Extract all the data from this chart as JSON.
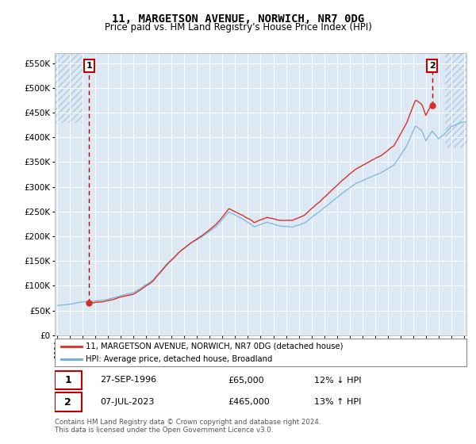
{
  "title": "11, MARGETSON AVENUE, NORWICH, NR7 0DG",
  "subtitle": "Price paid vs. HM Land Registry's House Price Index (HPI)",
  "legend_line1": "11, MARGETSON AVENUE, NORWICH, NR7 0DG (detached house)",
  "legend_line2": "HPI: Average price, detached house, Broadland",
  "point1_label": "1",
  "point1_date": "27-SEP-1996",
  "point1_price": "£65,000",
  "point1_hpi": "12% ↓ HPI",
  "point2_label": "2",
  "point2_date": "07-JUL-2023",
  "point2_price": "£465,000",
  "point2_hpi": "13% ↑ HPI",
  "footer": "Contains HM Land Registry data © Crown copyright and database right 2024.\nThis data is licensed under the Open Government Licence v3.0.",
  "ylim": [
    0,
    570000
  ],
  "yticks": [
    0,
    50000,
    100000,
    150000,
    200000,
    250000,
    300000,
    350000,
    400000,
    450000,
    500000,
    550000
  ],
  "ytick_labels": [
    "£0",
    "£50K",
    "£100K",
    "£150K",
    "£200K",
    "£250K",
    "£300K",
    "£350K",
    "£400K",
    "£450K",
    "£500K",
    "£550K"
  ],
  "hpi_color": "#6baed6",
  "price_color": "#d73027",
  "plot_bg_color": "#dce9f5",
  "annotation_box_color": "#c00000",
  "sale1_year": 1996.5,
  "sale1_price": 65000,
  "sale2_year": 2023.5,
  "sale2_price": 465000,
  "xmin": 1993.8,
  "xmax": 2026.2
}
